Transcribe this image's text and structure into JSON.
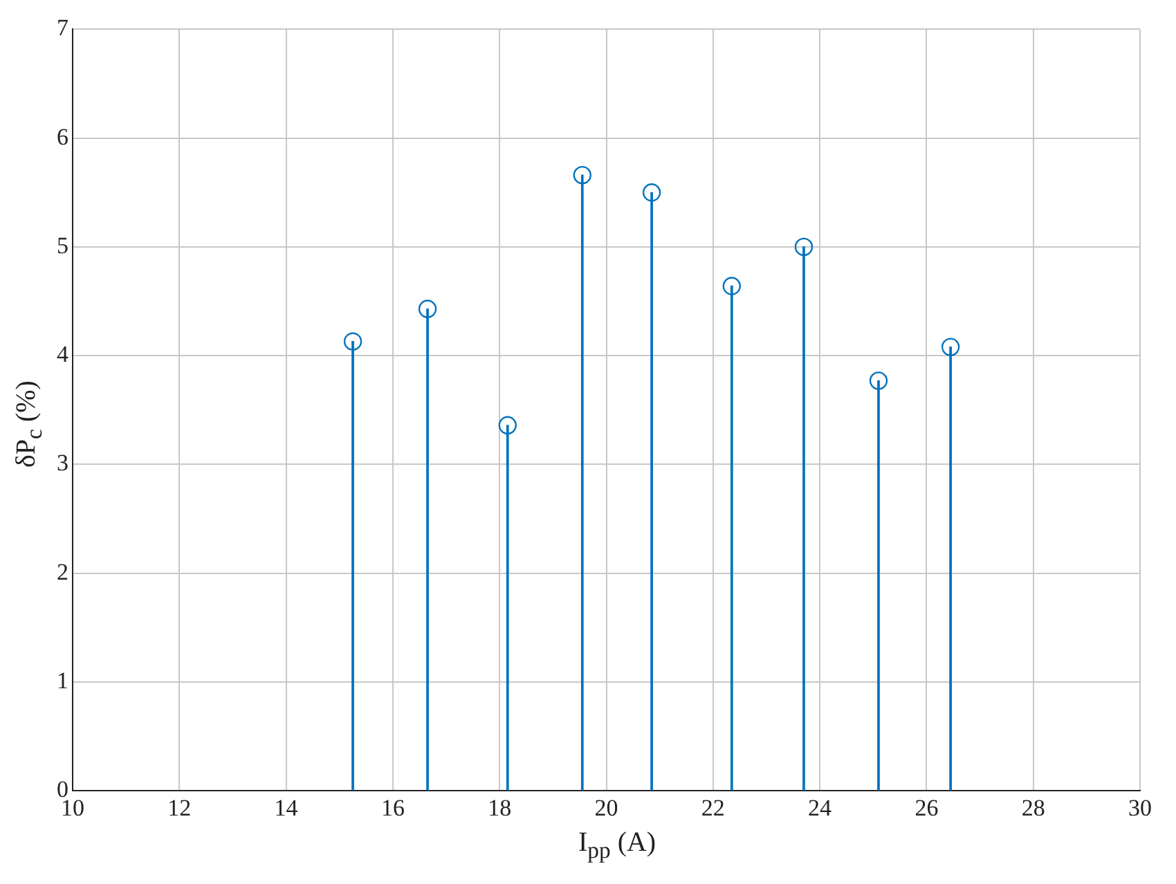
{
  "chart_data": {
    "type": "lollipop",
    "xlabel": "I$_{pp}$ (A)",
    "ylabel": "δP$_{c}$ (%)",
    "x": [
      15.25,
      16.65,
      18.15,
      19.55,
      20.85,
      22.35,
      23.7,
      25.1,
      26.45
    ],
    "values": [
      4.13,
      4.43,
      3.36,
      5.66,
      5.5,
      4.64,
      5.0,
      3.77,
      4.08
    ],
    "color": "#0072bd",
    "marker": "circle",
    "grid": true,
    "xlim": [
      10,
      30
    ],
    "xticks": [
      10,
      12,
      14,
      16,
      18,
      20,
      22,
      24,
      26,
      28,
      30
    ],
    "ylim": [
      0,
      7
    ],
    "yticks": [
      0,
      1,
      2,
      3,
      4,
      5,
      6,
      7
    ]
  }
}
